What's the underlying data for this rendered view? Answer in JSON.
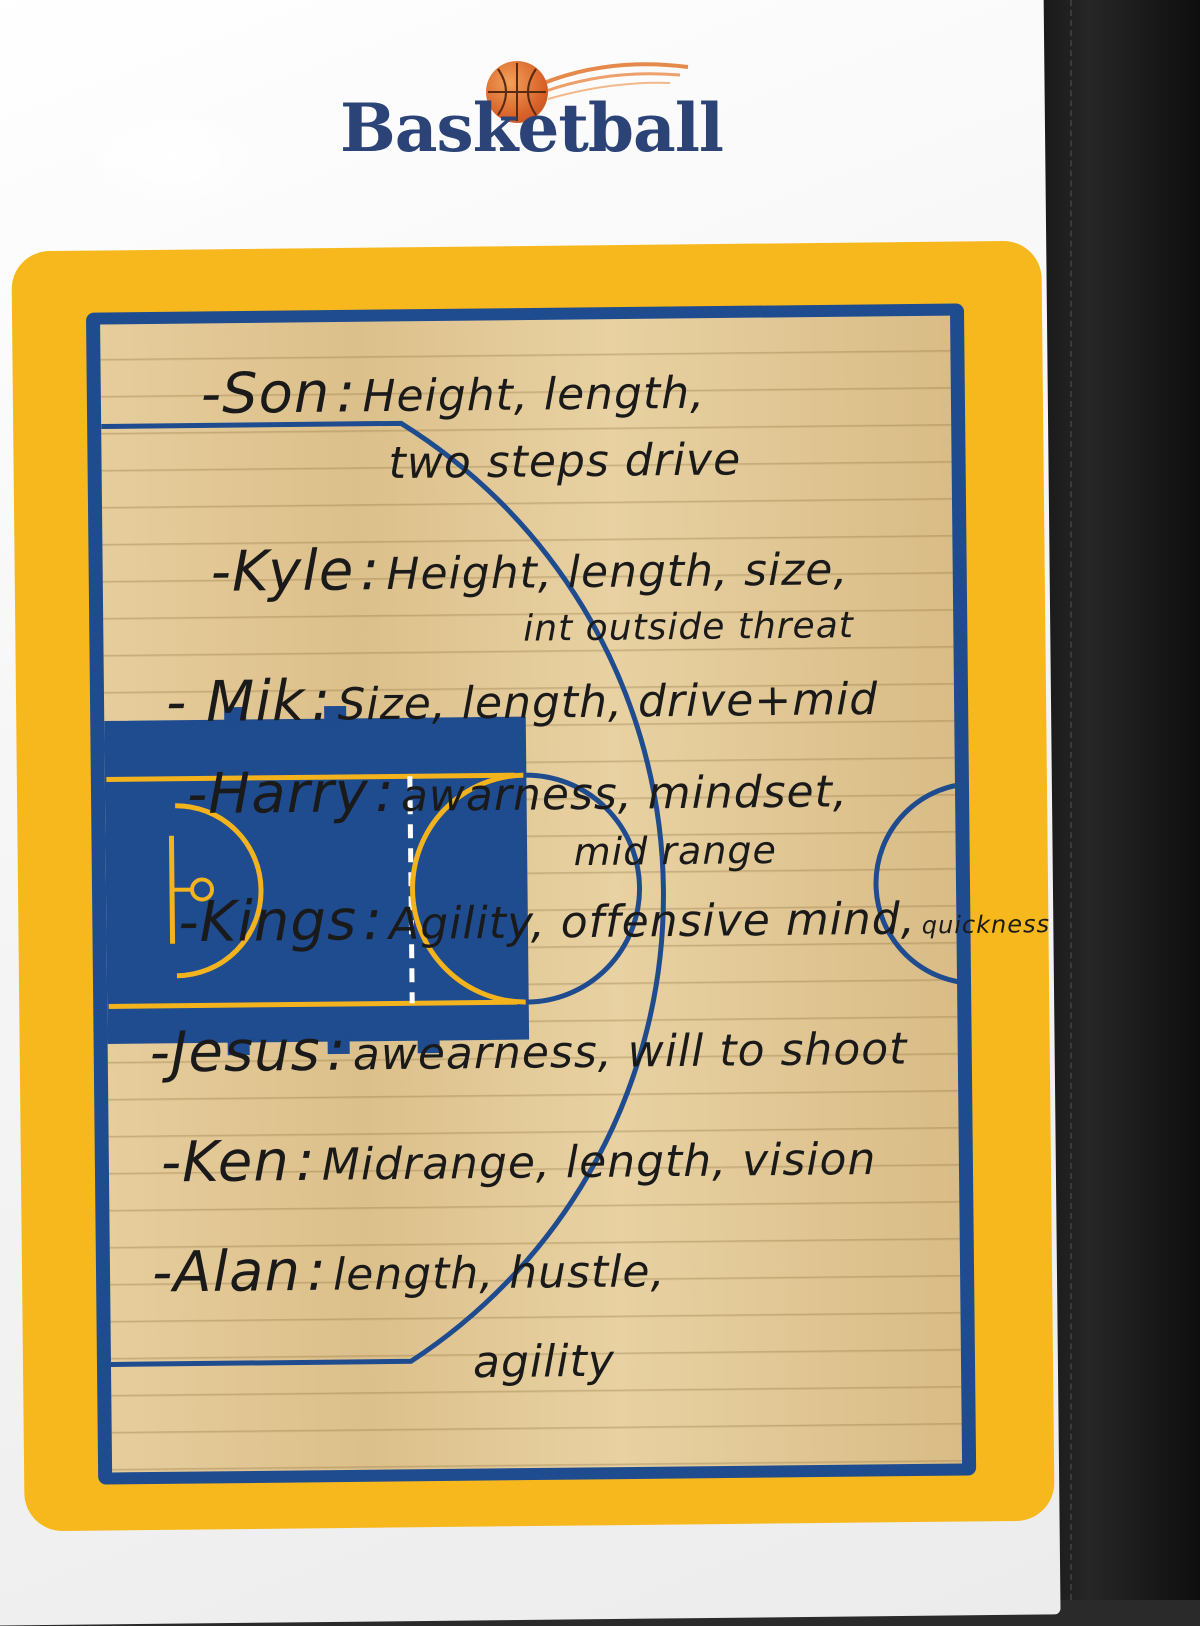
{
  "logo": {
    "text": "Basketball"
  },
  "notes": [
    {
      "name": "-Son",
      "sep": ":",
      "text": "Height, length,"
    },
    {
      "text": "two steps drive"
    },
    {
      "name": "-Kyle",
      "sep": ":",
      "text": "Height, length, size,"
    },
    {
      "text": "int outside threat"
    },
    {
      "name": "- Mik",
      "sep": ":",
      "text": "Size, length, drive+mid"
    },
    {
      "name": "-Harry",
      "sep": ":",
      "text": "awarness, mindset,"
    },
    {
      "text": "mid range"
    },
    {
      "name": "-Kings",
      "sep": ":",
      "text": "Agility, offensive mind,",
      "extra": "quickness"
    },
    {
      "name": "-Jesus",
      "sep": ":",
      "text": "awearness, will to shoot"
    },
    {
      "name": "-Ken",
      "sep": ":",
      "text": "Midrange, length, vision"
    },
    {
      "name": "-Alan",
      "sep": ":",
      "text": "length, hustle,"
    },
    {
      "text": "agility"
    }
  ],
  "colors": {
    "frame": "#f7b81e",
    "court_border": "#1f4b8f",
    "line_yellow": "#f2b31c",
    "logo_text": "#2c4378",
    "ink": "#1a1a1a"
  }
}
